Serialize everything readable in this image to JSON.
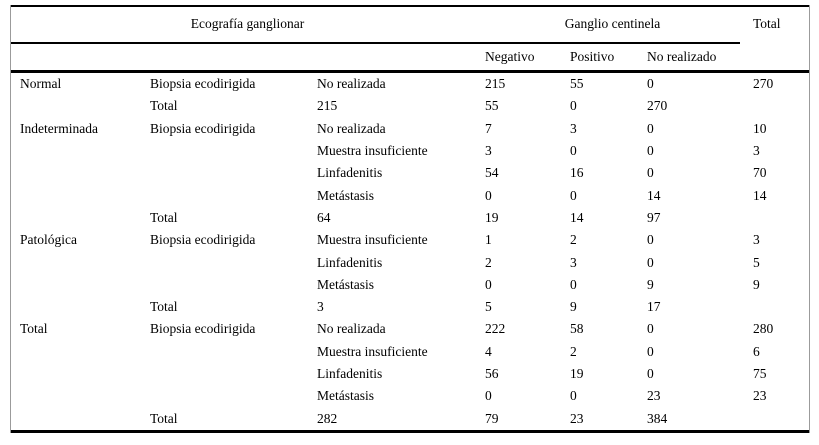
{
  "table": {
    "header": {
      "group_left": "Ecografía ganglionar",
      "group_center": "Ganglio centinela",
      "total": "Total",
      "subcolumns": [
        "Negativo",
        "Positivo",
        "No realizado"
      ]
    },
    "colors": {
      "text": "#000000",
      "rule": "#000000",
      "side_border": "#9b9b9b",
      "background": "#ffffff"
    },
    "rows": [
      {
        "eco": "Normal",
        "biopsia": "Biopsia ecodirigida",
        "resultado": "No realizada",
        "negativo": "215",
        "positivo": "55",
        "no_realizado": "0",
        "total": "270"
      },
      {
        "eco": "",
        "biopsia": "Total",
        "resultado": "215",
        "negativo": "55",
        "positivo": "0",
        "no_realizado": "270",
        "total": ""
      },
      {
        "eco": "Indeterminada",
        "biopsia": "Biopsia ecodirigida",
        "resultado": "No realizada",
        "negativo": "7",
        "positivo": "3",
        "no_realizado": "0",
        "total": "10"
      },
      {
        "eco": "",
        "biopsia": "",
        "resultado": "Muestra insuficiente",
        "negativo": "3",
        "positivo": "0",
        "no_realizado": "0",
        "total": "3"
      },
      {
        "eco": "",
        "biopsia": "",
        "resultado": "Linfadenitis",
        "negativo": "54",
        "positivo": "16",
        "no_realizado": "0",
        "total": "70"
      },
      {
        "eco": "",
        "biopsia": "",
        "resultado": "Metástasis",
        "negativo": "0",
        "positivo": "0",
        "no_realizado": "14",
        "total": "14"
      },
      {
        "eco": "",
        "biopsia": "Total",
        "resultado": "64",
        "negativo": "19",
        "positivo": "14",
        "no_realizado": "97",
        "total": ""
      },
      {
        "eco": "Patológica",
        "biopsia": "Biopsia ecodirigida",
        "resultado": "Muestra insuficiente",
        "negativo": "1",
        "positivo": "2",
        "no_realizado": "0",
        "total": "3"
      },
      {
        "eco": "",
        "biopsia": "",
        "resultado": "Linfadenitis",
        "negativo": "2",
        "positivo": "3",
        "no_realizado": "0",
        "total": "5"
      },
      {
        "eco": "",
        "biopsia": "",
        "resultado": "Metástasis",
        "negativo": "0",
        "positivo": "0",
        "no_realizado": "9",
        "total": "9"
      },
      {
        "eco": "",
        "biopsia": "Total",
        "resultado": "3",
        "negativo": "5",
        "positivo": "9",
        "no_realizado": "17",
        "total": ""
      },
      {
        "eco": "Total",
        "biopsia": "Biopsia ecodirigida",
        "resultado": "No realizada",
        "negativo": "222",
        "positivo": "58",
        "no_realizado": "0",
        "total": "280"
      },
      {
        "eco": "",
        "biopsia": "",
        "resultado": "Muestra insuficiente",
        "negativo": "4",
        "positivo": "2",
        "no_realizado": "0",
        "total": "6"
      },
      {
        "eco": "",
        "biopsia": "",
        "resultado": "Linfadenitis",
        "negativo": "56",
        "positivo": "19",
        "no_realizado": "0",
        "total": "75"
      },
      {
        "eco": "",
        "biopsia": "",
        "resultado": "Metástasis",
        "negativo": "0",
        "positivo": "0",
        "no_realizado": "23",
        "total": "23"
      },
      {
        "eco": "",
        "biopsia": "Total",
        "resultado": "282",
        "negativo": "79",
        "positivo": "23",
        "no_realizado": "384",
        "total": ""
      }
    ]
  }
}
